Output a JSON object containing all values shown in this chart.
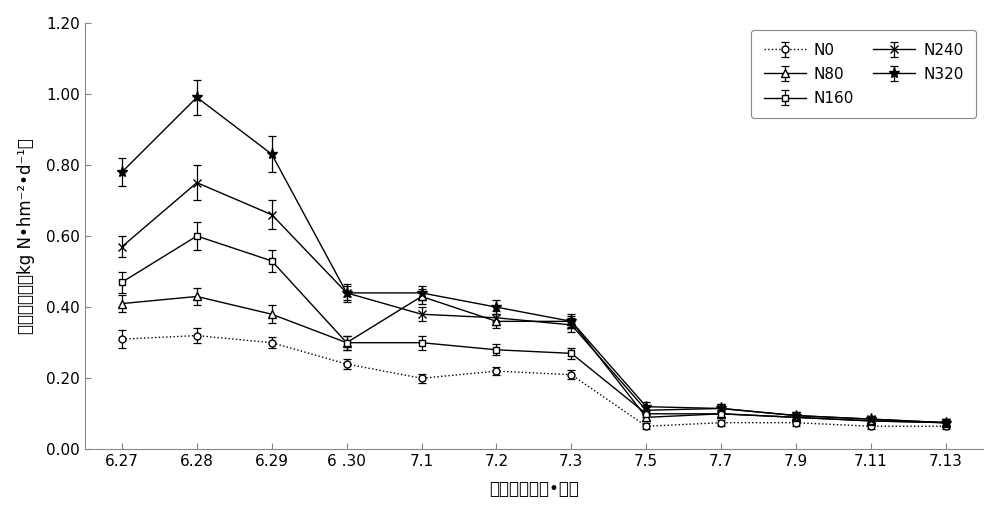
{
  "x_labels": [
    "6.27",
    "6.28",
    "6.29",
    "6 .30",
    "7.1",
    "7.2",
    "7.3",
    "7.5",
    "7.7",
    "7.9",
    "7.11",
    "7.13"
  ],
  "x_indices": [
    0,
    1,
    2,
    3,
    4,
    5,
    6,
    7,
    8,
    9,
    10,
    11
  ],
  "series_order": [
    "N0",
    "N80",
    "N160",
    "N240",
    "N320"
  ],
  "series": {
    "N0": {
      "y": [
        0.31,
        0.32,
        0.3,
        0.24,
        0.2,
        0.22,
        0.21,
        0.065,
        0.075,
        0.075,
        0.065,
        0.065
      ],
      "yerr": [
        0.025,
        0.02,
        0.015,
        0.015,
        0.012,
        0.012,
        0.012,
        0.008,
        0.008,
        0.008,
        0.008,
        0.008
      ],
      "marker": "o",
      "linestyle": "dotted",
      "color": "#000000",
      "label": "N0",
      "mfc": "white",
      "ms": 5
    },
    "N80": {
      "y": [
        0.41,
        0.43,
        0.38,
        0.3,
        0.43,
        0.36,
        0.36,
        0.09,
        0.1,
        0.09,
        0.08,
        0.075
      ],
      "yerr": [
        0.025,
        0.025,
        0.025,
        0.02,
        0.02,
        0.02,
        0.015,
        0.01,
        0.01,
        0.01,
        0.01,
        0.01
      ],
      "marker": "^",
      "linestyle": "solid",
      "color": "#000000",
      "label": "N80",
      "mfc": "white",
      "ms": 6
    },
    "N160": {
      "y": [
        0.47,
        0.6,
        0.53,
        0.3,
        0.3,
        0.28,
        0.27,
        0.1,
        0.1,
        0.09,
        0.08,
        0.075
      ],
      "yerr": [
        0.03,
        0.04,
        0.03,
        0.02,
        0.02,
        0.015,
        0.015,
        0.01,
        0.01,
        0.01,
        0.01,
        0.01
      ],
      "marker": "s",
      "linestyle": "solid",
      "color": "#000000",
      "label": "N160",
      "mfc": "white",
      "ms": 5
    },
    "N240": {
      "y": [
        0.57,
        0.75,
        0.66,
        0.44,
        0.38,
        0.37,
        0.35,
        0.11,
        0.115,
        0.095,
        0.085,
        0.075
      ],
      "yerr": [
        0.03,
        0.05,
        0.04,
        0.02,
        0.02,
        0.02,
        0.02,
        0.012,
        0.012,
        0.01,
        0.01,
        0.01
      ],
      "marker": "x",
      "linestyle": "solid",
      "color": "#000000",
      "label": "N240",
      "mfc": "#000000",
      "ms": 6
    },
    "N320": {
      "y": [
        0.78,
        0.99,
        0.83,
        0.44,
        0.44,
        0.4,
        0.36,
        0.12,
        0.115,
        0.095,
        0.085,
        0.075
      ],
      "yerr": [
        0.04,
        0.05,
        0.05,
        0.025,
        0.02,
        0.02,
        0.02,
        0.012,
        0.012,
        0.01,
        0.01,
        0.01
      ],
      "marker": "*",
      "linestyle": "solid",
      "color": "#000000",
      "label": "N320",
      "mfc": "#000000",
      "ms": 8
    }
  },
  "ylabel": "氨挥发速率（kg N•hm⁻²•d⁻¹）",
  "xlabel": "测定日期（月•日）",
  "ylim": [
    0.0,
    1.2
  ],
  "yticks": [
    0.0,
    0.2,
    0.4,
    0.6,
    0.8,
    1.0,
    1.2
  ],
  "background_color": "#ffffff"
}
